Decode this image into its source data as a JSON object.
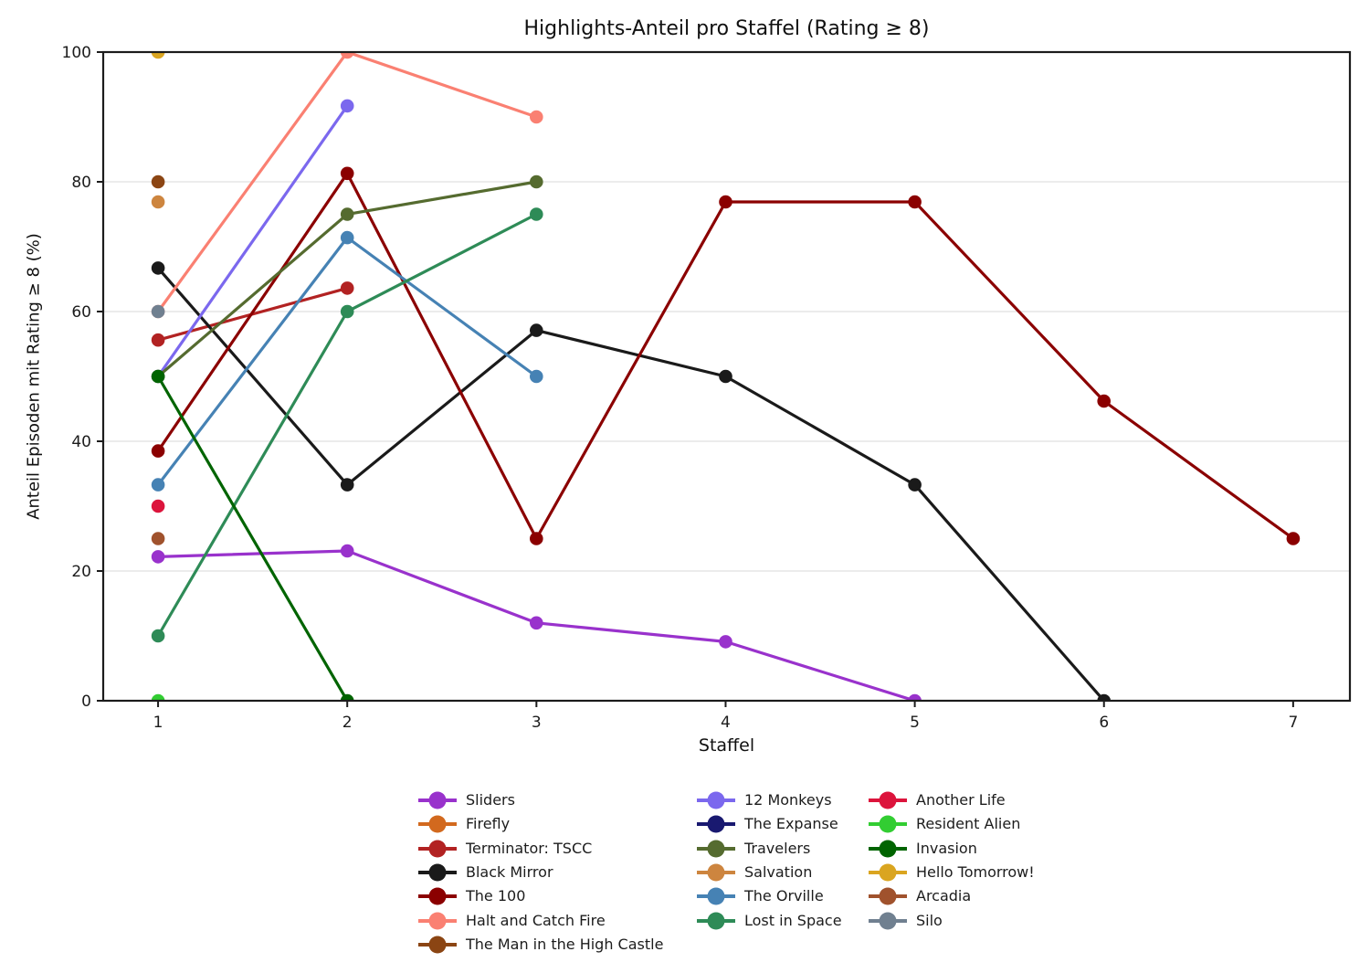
{
  "chart_data": {
    "type": "line",
    "title": "Highlights-Anteil pro Staffel (Rating ≥ 8)",
    "xlabel": "Staffel",
    "ylabel": "Anteil Episoden mit Rating ≥ 8 (%)",
    "x_ticks": [
      1,
      2,
      3,
      4,
      5,
      6,
      7
    ],
    "y_ticks": [
      0,
      20,
      40,
      60,
      80,
      100
    ],
    "xlim": [
      0.71,
      7.3
    ],
    "ylim": [
      0,
      100
    ],
    "grid": "horizontal-only",
    "legend_position": "below-plot, 3 columns, no frame",
    "x_start": 1,
    "series": [
      {
        "name": "Sliders",
        "color": "#9932CC",
        "values": [
          22.2,
          23.1,
          12,
          9.1,
          0
        ]
      },
      {
        "name": "Firefly",
        "color": "#D2691E",
        "values": []
      },
      {
        "name": "Terminator: TSCC",
        "color": "#B22222",
        "values": [
          55.6,
          63.6
        ]
      },
      {
        "name": "Black Mirror",
        "color": "#1a1a1a",
        "values": [
          66.7,
          33.3,
          57.1,
          50,
          33.3,
          0
        ]
      },
      {
        "name": "The 100",
        "color": "#8B0000",
        "values": [
          38.5,
          81.3,
          25,
          76.9,
          76.9,
          46.2,
          25
        ]
      },
      {
        "name": "Halt and Catch Fire",
        "color": "#FA8072",
        "values": [
          60,
          100,
          90
        ]
      },
      {
        "name": "The Man in the High Castle",
        "color": "#8B4513",
        "values": [
          80
        ]
      },
      {
        "name": "12 Monkeys",
        "color": "#7B68EE",
        "values": [
          50,
          91.7
        ]
      },
      {
        "name": "The Expanse",
        "color": "#191970",
        "values": []
      },
      {
        "name": "Travelers",
        "color": "#556B2F",
        "values": [
          50,
          75,
          80
        ]
      },
      {
        "name": "Salvation",
        "color": "#CD853F",
        "values": [
          76.9
        ]
      },
      {
        "name": "The Orville",
        "color": "#4682B4",
        "values": [
          33.3,
          71.4,
          50
        ]
      },
      {
        "name": "Lost in Space",
        "color": "#2E8B57",
        "values": [
          10,
          60,
          75
        ]
      },
      {
        "name": "Another Life",
        "color": "#DC143C",
        "values": [
          30
        ]
      },
      {
        "name": "Resident Alien",
        "color": "#32CD32",
        "values": [
          0
        ]
      },
      {
        "name": "Invasion",
        "color": "#006400",
        "values": [
          50,
          0
        ]
      },
      {
        "name": "Hello Tomorrow!",
        "color": "#DAA520",
        "values": [
          100
        ]
      },
      {
        "name": "Arcadia",
        "color": "#A0522D",
        "values": [
          25
        ]
      },
      {
        "name": "Silo",
        "color": "#708090",
        "values": [
          60
        ]
      }
    ],
    "legend": {
      "columns": [
        [
          "Sliders",
          "Firefly",
          "Terminator: TSCC",
          "Black Mirror",
          "The 100",
          "Halt and Catch Fire",
          "The Man in the High Castle"
        ],
        [
          "12 Monkeys",
          "The Expanse",
          "Travelers",
          "Salvation",
          "The Orville",
          "Lost in Space"
        ],
        [
          "Another Life",
          "Resident Alien",
          "Invasion",
          "Hello Tomorrow!",
          "Arcadia",
          "Silo"
        ]
      ]
    }
  },
  "colors": {
    "text": "#1c1c1c",
    "axis": "#1c1c1c",
    "grid": "#e9e9e9",
    "background": "#ffffff"
  }
}
